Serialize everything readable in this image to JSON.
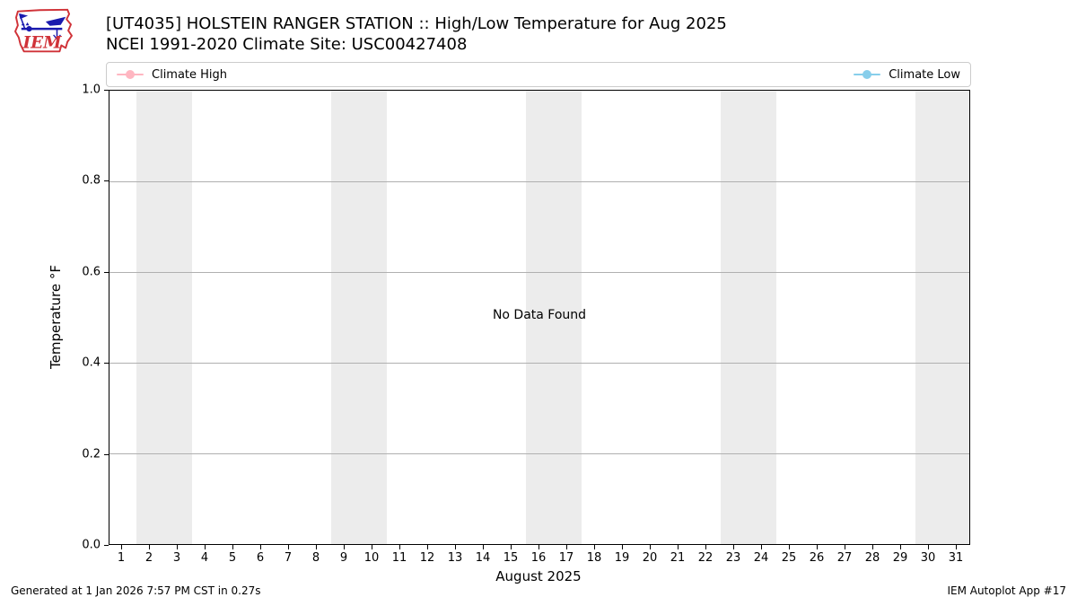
{
  "header": {
    "logo_text": "IEM",
    "title": "[UT4035] HOLSTEIN RANGER STATION :: High/Low Temperature for Aug 2025",
    "subtitle": "NCEI 1991-2020 Climate Site: USC00427408"
  },
  "legend": {
    "items": [
      {
        "label": "Climate High",
        "color": "#ffb6c1"
      },
      {
        "label": "Climate Low",
        "color": "#87ceeb"
      }
    ]
  },
  "chart_data": {
    "type": "line",
    "title": "[UT4035] HOLSTEIN RANGER STATION :: High/Low Temperature for Aug 2025",
    "subtitle": "NCEI 1991-2020 Climate Site: USC00427408",
    "xlabel": "August 2025",
    "ylabel": "Temperature °F",
    "ylim": [
      0.0,
      1.0
    ],
    "xlim": [
      0.55,
      31.5
    ],
    "y_ticks": [
      0.0,
      0.2,
      0.4,
      0.6,
      0.8,
      1.0
    ],
    "x_ticks": [
      1,
      2,
      3,
      4,
      5,
      6,
      7,
      8,
      9,
      10,
      11,
      12,
      13,
      14,
      15,
      16,
      17,
      18,
      19,
      20,
      21,
      22,
      23,
      24,
      25,
      26,
      27,
      28,
      29,
      30,
      31
    ],
    "grid": "horizontal",
    "grid_color": "#b0b0b0",
    "band_color": "#ececec",
    "weekend_bands_days": [
      [
        2,
        3
      ],
      [
        9,
        10
      ],
      [
        16,
        17
      ],
      [
        23,
        24
      ],
      [
        30,
        31
      ]
    ],
    "legend_position": "top",
    "series": [
      {
        "name": "Climate High",
        "color": "#ffb6c1",
        "x": [],
        "values": []
      },
      {
        "name": "Climate Low",
        "color": "#87ceeb",
        "x": [],
        "values": []
      }
    ],
    "annotation": "No Data Found"
  },
  "footer": {
    "left": "Generated at 1 Jan 2026 7:57 PM CST in 0.27s",
    "right": "IEM Autoplot App #17"
  },
  "colors": {
    "logo_red": "#d03238",
    "logo_blue": "#1a1aae",
    "axis": "#000000",
    "legend_border": "#cccccc"
  }
}
